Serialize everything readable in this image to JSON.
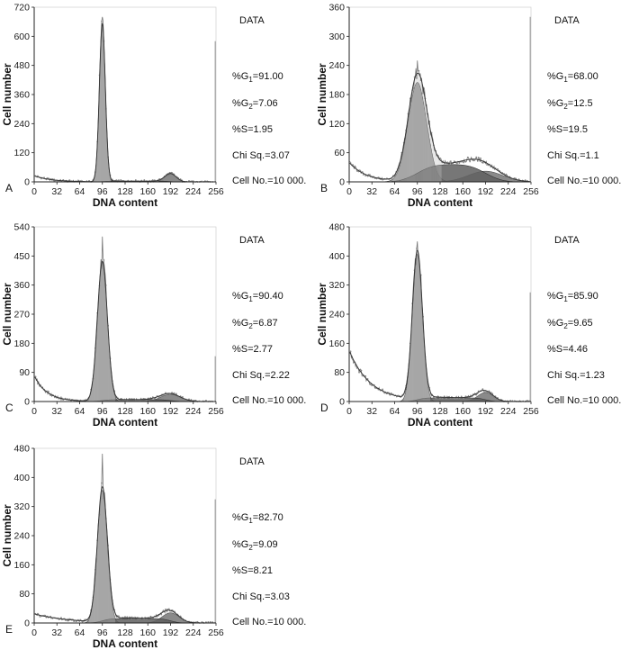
{
  "chart_data": [
    {
      "panel": "A",
      "type": "histogram",
      "xlabel": "DNA content",
      "ylabel": "Cell number",
      "xlim": [
        0,
        256
      ],
      "ylim": [
        0,
        720
      ],
      "xticks": [
        0,
        32,
        64,
        96,
        128,
        160,
        192,
        224,
        256
      ],
      "yticks": [
        0,
        120,
        240,
        360,
        480,
        600,
        720
      ],
      "stats": {
        "title": "DATA",
        "g1": "%G1=91.00",
        "g2": "%G2=7.06",
        "s": "%S=1.95",
        "chi": "Chi Sq.=3.07",
        "cells": "Cell No.=10 000."
      },
      "g1_peak": {
        "x": 96,
        "height": 650,
        "width": 4.2
      },
      "g2_peak": {
        "x": 192,
        "height": 33,
        "width": 8
      },
      "s_phase": {
        "height": 3
      },
      "raw_peak_max": 680,
      "debris": {
        "height": 25,
        "decay": 4
      },
      "right_edge": 580
    },
    {
      "panel": "B",
      "type": "histogram",
      "xlabel": "DNA content",
      "ylabel": "Cell number",
      "xlim": [
        0,
        256
      ],
      "ylim": [
        0,
        360
      ],
      "xticks": [
        0,
        32,
        64,
        96,
        128,
        160,
        192,
        224,
        256
      ],
      "yticks": [
        0,
        60,
        120,
        180,
        240,
        300,
        360
      ],
      "stats": {
        "title": "DATA",
        "g1": "%G1=68.00",
        "g2": "%G2=12.5",
        "s": "%S=19.5",
        "chi": "Chi Sq.=1.1",
        "cells": "Cell No.=10 000."
      },
      "g1_peak": {
        "x": 96,
        "height": 205,
        "width": 13
      },
      "g2_peak": {
        "x": 192,
        "height": 22,
        "width": 24
      },
      "s_phase": {
        "height": 36
      },
      "raw_peak_max": 250,
      "debris": {
        "height": 40,
        "decay": 4
      },
      "right_edge": 340
    },
    {
      "panel": "C",
      "type": "histogram",
      "xlabel": "DNA content",
      "ylabel": "Cell number",
      "xlim": [
        0,
        256
      ],
      "ylim": [
        0,
        540
      ],
      "xticks": [
        0,
        32,
        64,
        96,
        128,
        160,
        192,
        224,
        256
      ],
      "yticks": [
        0,
        90,
        180,
        270,
        360,
        450,
        540
      ],
      "stats": {
        "title": "DATA",
        "g1": "%G1=90.40",
        "g2": "%G2=6.87",
        "s": "%S=2.77",
        "chi": "Chi Sq.=2.22",
        "cells": "Cell No.=10 000."
      },
      "g1_peak": {
        "x": 96,
        "height": 430,
        "width": 7
      },
      "g2_peak": {
        "x": 192,
        "height": 22,
        "width": 14
      },
      "s_phase": {
        "height": 6
      },
      "raw_peak_max": 510,
      "debris": {
        "height": 80,
        "decay": 3
      },
      "right_edge": 140
    },
    {
      "panel": "D",
      "type": "histogram",
      "xlabel": "DNA content",
      "ylabel": "Cell number",
      "xlim": [
        0,
        256
      ],
      "ylim": [
        0,
        480
      ],
      "xticks": [
        0,
        32,
        64,
        96,
        128,
        160,
        192,
        224,
        256
      ],
      "yticks": [
        0,
        80,
        160,
        240,
        320,
        400,
        480
      ],
      "stats": {
        "title": "DATA",
        "g1": "%G1=85.90",
        "g2": "%G2=9.65",
        "s": "%S=4.46",
        "chi": "Chi Sq.=1.23",
        "cells": "Cell No.=10 000."
      },
      "g1_peak": {
        "x": 96,
        "height": 405,
        "width": 7
      },
      "g2_peak": {
        "x": 192,
        "height": 25,
        "width": 11
      },
      "s_phase": {
        "height": 10
      },
      "raw_peak_max": 440,
      "debris": {
        "height": 140,
        "decay": 5
      },
      "right_edge": 300
    },
    {
      "panel": "E",
      "type": "histogram",
      "xlabel": "DNA content",
      "ylabel": "Cell number",
      "xlim": [
        0,
        256
      ],
      "ylim": [
        0,
        480
      ],
      "xticks": [
        0,
        32,
        64,
        96,
        128,
        160,
        192,
        224,
        256
      ],
      "yticks": [
        0,
        80,
        160,
        240,
        320,
        400,
        480
      ],
      "stats": {
        "title": "DATA",
        "g1": "%G1=82.70",
        "g2": "%G2=9.09",
        "s": "%S=8.21",
        "chi": "Chi Sq.=3.03",
        "cells": "Cell No.=10 000."
      },
      "g1_peak": {
        "x": 96,
        "height": 365,
        "width": 7
      },
      "g2_peak": {
        "x": 192,
        "height": 28,
        "width": 12
      },
      "s_phase": {
        "height": 12
      },
      "raw_peak_max": 465,
      "debris": {
        "height": 25,
        "decay": 8
      },
      "right_edge": 340
    }
  ],
  "colors": {
    "g1_fill": "#9a9a9a",
    "s_fill": "#5f5f5f",
    "g2_fill": "#8a8a8a",
    "trace": "#777777",
    "axis": "#222222"
  }
}
